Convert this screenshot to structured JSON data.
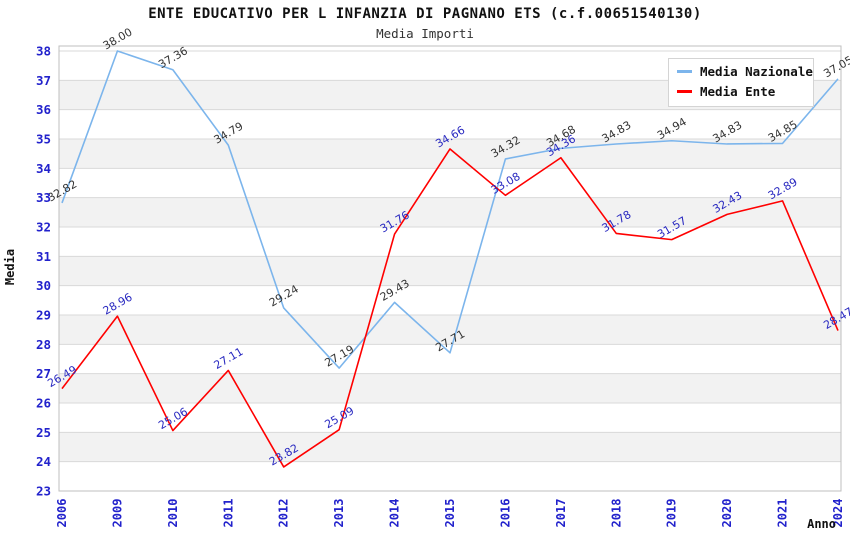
{
  "header": {
    "title": "ENTE EDUCATIVO PER L INFANZIA DI PAGNANO ETS (c.f.00651540130)",
    "subtitle": "Media Importi"
  },
  "legend": {
    "items": [
      {
        "label": "Media Nazionale",
        "color": "#7cb5ec"
      },
      {
        "label": "Media Ente",
        "color": "#ff0000"
      }
    ]
  },
  "chart_data": {
    "type": "line",
    "title": "ENTE EDUCATIVO PER L INFANZIA DI PAGNANO ETS (c.f.00651540130)",
    "subtitle": "Media Importi",
    "xlabel": "Anno",
    "ylabel": "Media",
    "categories": [
      "2006",
      "2009",
      "2010",
      "2011",
      "2012",
      "2013",
      "2014",
      "2015",
      "2016",
      "2017",
      "2018",
      "2019",
      "2020",
      "2021",
      "2024"
    ],
    "series": [
      {
        "name": "Media Nazionale",
        "color": "#7cb5ec",
        "label_color": "#333333",
        "values": [
          32.82,
          38.0,
          37.36,
          34.79,
          29.24,
          27.19,
          29.43,
          27.71,
          34.32,
          34.68,
          34.83,
          34.94,
          34.83,
          34.85,
          37.05
        ]
      },
      {
        "name": "Media Ente",
        "color": "#ff0000",
        "label_color": "#2828c0",
        "values": [
          26.49,
          28.96,
          25.06,
          27.11,
          23.82,
          25.09,
          31.76,
          34.66,
          33.08,
          34.36,
          31.78,
          31.57,
          32.43,
          32.89,
          28.47
        ]
      }
    ],
    "ylim": [
      23,
      38
    ],
    "y_ticks": [
      23,
      24,
      25,
      26,
      27,
      28,
      29,
      30,
      31,
      32,
      33,
      34,
      35,
      36,
      37,
      38
    ],
    "grid": true,
    "band_color": "#f2f2f2",
    "grid_color": "#d9d9d9",
    "border_color": "#bfbfbf",
    "tick_label_color": "#2222cc",
    "legend_position": "top-right"
  }
}
